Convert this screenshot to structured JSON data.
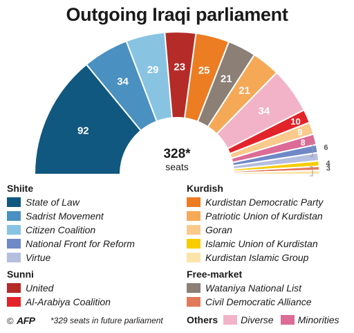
{
  "title": "Outgoing Iraqi parliament",
  "center": {
    "total": "328*",
    "sub": "seats"
  },
  "footnote": "*329 seats in future parliament",
  "credit": {
    "copyright": "©",
    "logo_text": "AFP"
  },
  "legend": {
    "shiite": {
      "title": "Shiite",
      "entries": [
        {
          "label": "State of Law",
          "color": "#10587f"
        },
        {
          "label": "Sadrist Movement",
          "color": "#4a90c0"
        },
        {
          "label": "Citizen Coalition",
          "color": "#88c4e2"
        },
        {
          "label": "National Front for Reform",
          "color": "#6f88c8"
        },
        {
          "label": "Virtue",
          "color": "#b5bedf"
        }
      ]
    },
    "sunni": {
      "title": "Sunni",
      "entries": [
        {
          "label": "United",
          "color": "#b52b27"
        },
        {
          "label": "Al-Arabiya Coalition",
          "color": "#e2242a"
        }
      ]
    },
    "kurdish": {
      "title": "Kurdish",
      "entries": [
        {
          "label": "Kurdistan Democratic Party",
          "color": "#ec7d23"
        },
        {
          "label": "Patriotic Union of Kurdistan",
          "color": "#f5a957"
        },
        {
          "label": "Goran",
          "color": "#fac98c"
        },
        {
          "label": "Islamic Union of Kurdistan",
          "color": "#f7cd00"
        },
        {
          "label": "Kurdistan Islamic Group",
          "color": "#fbe4a9"
        }
      ]
    },
    "free_market": {
      "title": "Free-market",
      "entries": [
        {
          "label": "Wataniya National List",
          "color": "#8b7f76"
        },
        {
          "label": "Civil Democratic Alliance",
          "color": "#e2795a"
        }
      ]
    },
    "others": {
      "title": "Others",
      "entries": [
        {
          "label": "Diverse",
          "color": "#f2b3c8"
        },
        {
          "label": "Minorities",
          "color": "#dc6b96"
        }
      ]
    }
  },
  "chart_data": {
    "type": "pie",
    "title": "Outgoing Iraqi parliament",
    "total_label": "328* seats",
    "slices": [
      {
        "party": "State of Law",
        "value": 92,
        "color": "#10587f",
        "label": "92",
        "label_pos": "inside"
      },
      {
        "party": "Sadrist Movement",
        "value": 34,
        "color": "#4a90c0",
        "label": "34",
        "label_pos": "inside"
      },
      {
        "party": "Citizen Coalition",
        "value": 29,
        "color": "#88c4e2",
        "label": "29",
        "label_pos": "inside"
      },
      {
        "party": "United",
        "value": 23,
        "color": "#b52b27",
        "label": "23",
        "label_pos": "inside"
      },
      {
        "party": "Kurdistan Democratic Party",
        "value": 25,
        "color": "#ec7d23",
        "label": "25",
        "label_pos": "inside"
      },
      {
        "party": "Wataniya National List",
        "value": 21,
        "color": "#8b7f76",
        "label": "21",
        "label_pos": "inside"
      },
      {
        "party": "Patriotic Union of Kurdistan",
        "value": 21,
        "color": "#f5a957",
        "label": "21",
        "label_pos": "inside"
      },
      {
        "party": "Diverse",
        "value": 34,
        "color": "#f2b3c8",
        "label": "34",
        "label_pos": "inside"
      },
      {
        "party": "Al-Arabiya Coalition",
        "value": 10,
        "color": "#e2242a",
        "label": "10",
        "label_pos": "inside"
      },
      {
        "party": "Goran",
        "value": 9,
        "color": "#fac98c",
        "label": "9",
        "label_pos": "inside"
      },
      {
        "party": "Minorities",
        "value": 8,
        "color": "#dc6b96",
        "label": "8",
        "label_pos": "inside"
      },
      {
        "party": "National Front for Reform",
        "value": 6,
        "color": "#6f88c8",
        "label": "6",
        "label_pos": "outside"
      },
      {
        "party": "Virtue",
        "value": 6,
        "color": "#b5bedf",
        "label": "",
        "label_pos": "outside"
      },
      {
        "party": "Islamic Union of Kurdistan",
        "value": 4,
        "color": "#f7cd00",
        "label": "4",
        "label_pos": "outside"
      },
      {
        "party": "Civil Democratic Alliance",
        "value": 3,
        "color": "#e2795a",
        "label": "3",
        "label_pos": "outside"
      },
      {
        "party": "Kurdistan Islamic Group",
        "value": 3,
        "color": "#fbe4a9",
        "label": "",
        "label_pos": "outside"
      }
    ]
  }
}
